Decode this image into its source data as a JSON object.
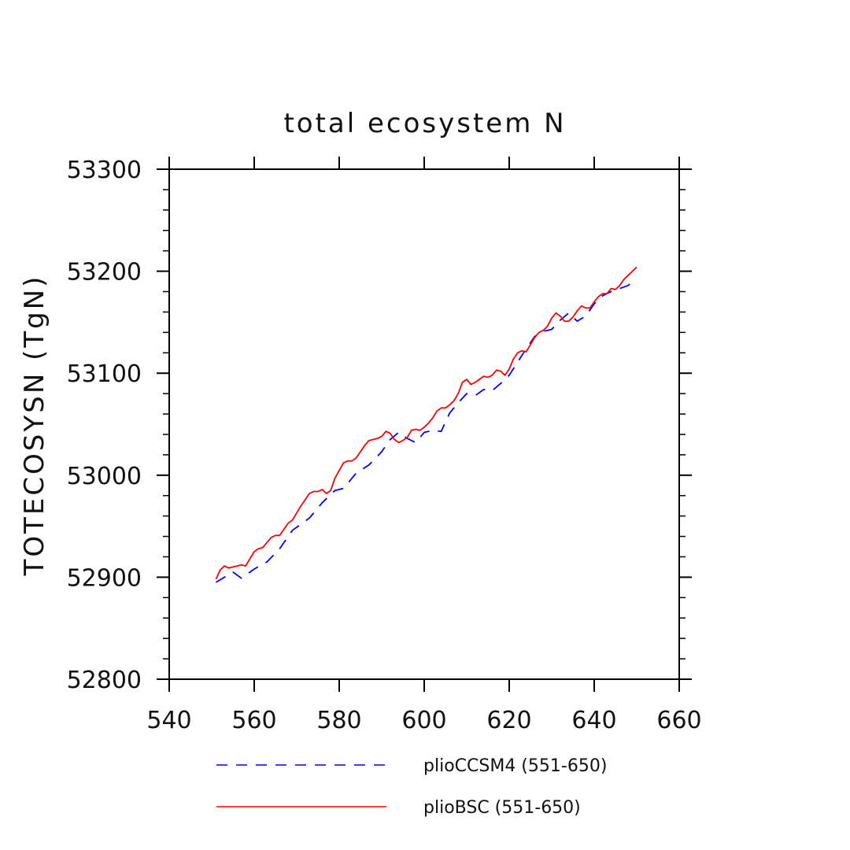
{
  "chart_data": {
    "type": "line",
    "title": "total ecosystem N",
    "xlabel": "",
    "ylabel": "TOTECOSYSN  (TgN)",
    "xlim": [
      540,
      660
    ],
    "ylim": [
      52800,
      53300
    ],
    "xticks": [
      540,
      560,
      580,
      600,
      620,
      640,
      660
    ],
    "yticks": [
      52800,
      52900,
      53000,
      53100,
      53200,
      53300
    ],
    "x_tick_labels": [
      "540",
      "560",
      "580",
      "600",
      "620",
      "640",
      "660"
    ],
    "y_tick_labels": [
      "52800",
      "52900",
      "53000",
      "53100",
      "53200",
      "53300"
    ],
    "grid": false,
    "legend_position": "bottom",
    "series": [
      {
        "name": "plioCCSM4 (551-650)",
        "color": "#0000ff",
        "style": "dashed",
        "x": [
          551,
          555,
          557,
          560,
          563,
          566,
          569,
          571,
          573,
          576,
          579,
          581,
          584,
          587,
          590,
          592,
          594,
          596,
          598,
          600,
          602,
          604,
          606,
          608,
          610,
          612,
          614,
          616,
          618,
          620,
          622,
          624,
          626,
          628,
          630,
          632,
          634,
          636,
          638,
          640,
          642,
          644,
          646,
          648,
          649
        ],
        "values": [
          52895,
          52905,
          52899,
          52908,
          52915,
          52928,
          52946,
          52952,
          52958,
          52973,
          52985,
          52987,
          53002,
          53010,
          53023,
          53035,
          53042,
          53036,
          53032,
          53042,
          53044,
          53043,
          53061,
          53071,
          53080,
          53078,
          53084,
          53083,
          53090,
          53098,
          53111,
          53124,
          53136,
          53141,
          53143,
          53152,
          53159,
          53151,
          53156,
          53168,
          53176,
          53180,
          53183,
          53186,
          53190
        ]
      },
      {
        "name": "plioBSC (551-650)",
        "color": "#ff0000",
        "style": "solid",
        "x": [
          551,
          552,
          553,
          554,
          555,
          556,
          557,
          558,
          560,
          561,
          562,
          564,
          565,
          566,
          568,
          569,
          571,
          573,
          574,
          575,
          576,
          577,
          578,
          579,
          581,
          582,
          583,
          584,
          586,
          587,
          589,
          590,
          591,
          592,
          593,
          594,
          595,
          596,
          597,
          598,
          599,
          600,
          601,
          602,
          603,
          604,
          605,
          606,
          607,
          608,
          609,
          610,
          611,
          612,
          614,
          615,
          616,
          617,
          618,
          619,
          620,
          621,
          622,
          623,
          624,
          626,
          627,
          628,
          629,
          630,
          631,
          632,
          633,
          634,
          635,
          636,
          637,
          638,
          639,
          640,
          641,
          642,
          643,
          644,
          645,
          646,
          647,
          648,
          649,
          650
        ],
        "values": [
          52898,
          52907,
          52911,
          52909,
          52910,
          52911,
          52912,
          52911,
          52925,
          52928,
          52929,
          52939,
          52941,
          52941,
          52953,
          52956,
          52970,
          52982,
          52984,
          52984,
          52986,
          52982,
          52985,
          52997,
          53012,
          53014,
          53014,
          53017,
          53029,
          53034,
          53036,
          53038,
          53043,
          53041,
          53035,
          53032,
          53034,
          53037,
          53044,
          53045,
          53044,
          53047,
          53051,
          53056,
          53063,
          53066,
          53066,
          53069,
          53073,
          53080,
          53091,
          53094,
          53089,
          53091,
          53097,
          53096,
          53098,
          53103,
          53102,
          53098,
          53104,
          53114,
          53120,
          53122,
          53121,
          53135,
          53140,
          53142,
          53146,
          53154,
          53159,
          53156,
          53151,
          53151,
          53155,
          53161,
          53166,
          53164,
          53164,
          53170,
          53175,
          53178,
          53178,
          53183,
          53182,
          53186,
          53192,
          53196,
          53200,
          53204
        ]
      }
    ]
  }
}
